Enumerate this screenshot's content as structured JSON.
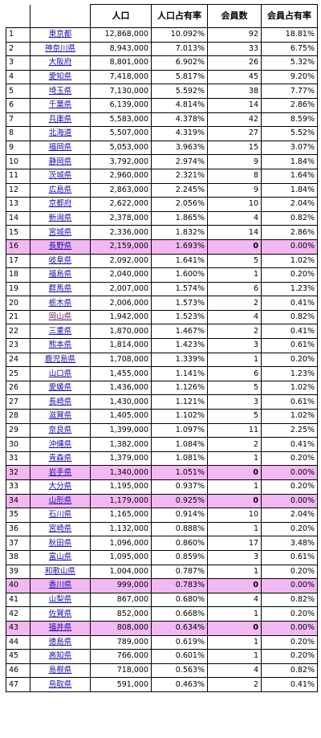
{
  "headers": [
    "",
    "",
    "人口",
    "人口占有率",
    "会員数",
    "会員占有率"
  ],
  "rows": [
    {
      "n": "1",
      "name": "東京都",
      "pop": "12,868,000",
      "pop_share": "10.092%",
      "members": "92",
      "mem_share": "18.81%",
      "highlight": false
    },
    {
      "n": "2",
      "name": "神奈川県",
      "pop": "8,943,000",
      "pop_share": "7.013%",
      "members": "33",
      "mem_share": "6.75%",
      "highlight": false
    },
    {
      "n": "3",
      "name": "大阪府",
      "pop": "8,801,000",
      "pop_share": "6.902%",
      "members": "26",
      "mem_share": "5.32%",
      "highlight": false
    },
    {
      "n": "4",
      "name": "愛知県",
      "pop": "7,418,000",
      "pop_share": "5.817%",
      "members": "45",
      "mem_share": "9.20%",
      "highlight": false
    },
    {
      "n": "5",
      "name": "埼玉県",
      "pop": "7,130,000",
      "pop_share": "5.592%",
      "members": "38",
      "mem_share": "7.77%",
      "highlight": false
    },
    {
      "n": "6",
      "name": "千葉県",
      "pop": "6,139,000",
      "pop_share": "4.814%",
      "members": "14",
      "mem_share": "2.86%",
      "highlight": false
    },
    {
      "n": "7",
      "name": "兵庫県",
      "pop": "5,583,000",
      "pop_share": "4.378%",
      "members": "42",
      "mem_share": "8.59%",
      "highlight": false
    },
    {
      "n": "8",
      "name": "北海道",
      "pop": "5,507,000",
      "pop_share": "4.319%",
      "members": "27",
      "mem_share": "5.52%",
      "highlight": false
    },
    {
      "n": "9",
      "name": "福岡県",
      "pop": "5,053,000",
      "pop_share": "3.963%",
      "members": "15",
      "mem_share": "3.07%",
      "highlight": false
    },
    {
      "n": "10",
      "name": "静岡県",
      "pop": "3,792,000",
      "pop_share": "2.974%",
      "members": "9",
      "mem_share": "1.84%",
      "highlight": false
    },
    {
      "n": "11",
      "name": "茨城県",
      "pop": "2,960,000",
      "pop_share": "2.321%",
      "members": "8",
      "mem_share": "1.64%",
      "highlight": false
    },
    {
      "n": "12",
      "name": "広島県",
      "pop": "2,863,000",
      "pop_share": "2.245%",
      "members": "9",
      "mem_share": "1.84%",
      "highlight": false
    },
    {
      "n": "13",
      "name": "京都府",
      "pop": "2,622,000",
      "pop_share": "2.056%",
      "members": "10",
      "mem_share": "2.04%",
      "highlight": false
    },
    {
      "n": "14",
      "name": "新潟県",
      "pop": "2,378,000",
      "pop_share": "1.865%",
      "members": "4",
      "mem_share": "0.82%",
      "highlight": false
    },
    {
      "n": "15",
      "name": "宮城県",
      "pop": "2,336,000",
      "pop_share": "1.832%",
      "members": "14",
      "mem_share": "2.86%",
      "highlight": false
    },
    {
      "n": "16",
      "name": "長野県",
      "pop": "2,159,000",
      "pop_share": "1.693%",
      "members": "0",
      "mem_share": "0.00%",
      "highlight": true
    },
    {
      "n": "17",
      "name": "岐阜県",
      "pop": "2,092,000",
      "pop_share": "1.641%",
      "members": "5",
      "mem_share": "1.02%",
      "highlight": false
    },
    {
      "n": "18",
      "name": "福島県",
      "pop": "2,040,000",
      "pop_share": "1.600%",
      "members": "1",
      "mem_share": "0.20%",
      "highlight": false
    },
    {
      "n": "19",
      "name": "群馬県",
      "pop": "2,007,000",
      "pop_share": "1.574%",
      "members": "6",
      "mem_share": "1.23%",
      "highlight": false
    },
    {
      "n": "20",
      "name": "栃木県",
      "pop": "2,006,000",
      "pop_share": "1.573%",
      "members": "2",
      "mem_share": "0.41%",
      "highlight": false
    },
    {
      "n": "21",
      "name": "岡山県",
      "pop": "1,942,000",
      "pop_share": "1.523%",
      "members": "4",
      "mem_share": "0.82%",
      "highlight": false
    },
    {
      "n": "22",
      "name": "三重県",
      "pop": "1,870,000",
      "pop_share": "1.467%",
      "members": "2",
      "mem_share": "0.41%",
      "highlight": false
    },
    {
      "n": "23",
      "name": "熊本県",
      "pop": "1,814,000",
      "pop_share": "1.423%",
      "members": "3",
      "mem_share": "0.61%",
      "highlight": false
    },
    {
      "n": "24",
      "name": "鹿児島県",
      "pop": "1,708,000",
      "pop_share": "1.339%",
      "members": "1",
      "mem_share": "0.20%",
      "highlight": false
    },
    {
      "n": "25",
      "name": "山口県",
      "pop": "1,455,000",
      "pop_share": "1.141%",
      "members": "6",
      "mem_share": "1.23%",
      "highlight": false
    },
    {
      "n": "26",
      "name": "愛媛県",
      "pop": "1,436,000",
      "pop_share": "1.126%",
      "members": "5",
      "mem_share": "1.02%",
      "highlight": false
    },
    {
      "n": "27",
      "name": "長崎県",
      "pop": "1,430,000",
      "pop_share": "1.121%",
      "members": "3",
      "mem_share": "0.61%",
      "highlight": false
    },
    {
      "n": "28",
      "name": "滋賀県",
      "pop": "1,405,000",
      "pop_share": "1.102%",
      "members": "5",
      "mem_share": "1.02%",
      "highlight": false
    },
    {
      "n": "29",
      "name": "奈良県",
      "pop": "1,399,000",
      "pop_share": "1.097%",
      "members": "11",
      "mem_share": "2.25%",
      "highlight": false
    },
    {
      "n": "30",
      "name": "沖縄県",
      "pop": "1,382,000",
      "pop_share": "1.084%",
      "members": "2",
      "mem_share": "0.41%",
      "highlight": false
    },
    {
      "n": "31",
      "name": "青森県",
      "pop": "1,379,000",
      "pop_share": "1.081%",
      "members": "1",
      "mem_share": "0.20%",
      "highlight": false
    },
    {
      "n": "32",
      "name": "岩手県",
      "pop": "1,340,000",
      "pop_share": "1.051%",
      "members": "0",
      "mem_share": "0.00%",
      "highlight": true
    },
    {
      "n": "33",
      "name": "大分県",
      "pop": "1,195,000",
      "pop_share": "0.937%",
      "members": "1",
      "mem_share": "0.20%",
      "highlight": false
    },
    {
      "n": "34",
      "name": "山形県",
      "pop": "1,179,000",
      "pop_share": "0.925%",
      "members": "0",
      "mem_share": "0.00%",
      "highlight": true
    },
    {
      "n": "35",
      "name": "石川県",
      "pop": "1,165,000",
      "pop_share": "0.914%",
      "members": "10",
      "mem_share": "2.04%",
      "highlight": false
    },
    {
      "n": "36",
      "name": "宮崎県",
      "pop": "1,132,000",
      "pop_share": "0.888%",
      "members": "1",
      "mem_share": "0.20%",
      "highlight": false
    },
    {
      "n": "37",
      "name": "秋田県",
      "pop": "1,096,000",
      "pop_share": "0.860%",
      "members": "17",
      "mem_share": "3.48%",
      "highlight": false
    },
    {
      "n": "38",
      "name": "富山県",
      "pop": "1,095,000",
      "pop_share": "0.859%",
      "members": "3",
      "mem_share": "0.61%",
      "highlight": false
    },
    {
      "n": "39",
      "name": "和歌山県",
      "pop": "1,004,000",
      "pop_share": "0.787%",
      "members": "1",
      "mem_share": "0.20%",
      "highlight": false
    },
    {
      "n": "40",
      "name": "香川県",
      "pop": "999,000",
      "pop_share": "0.783%",
      "members": "0",
      "mem_share": "0.00%",
      "highlight": true
    },
    {
      "n": "41",
      "name": "山梨県",
      "pop": "867,000",
      "pop_share": "0.680%",
      "members": "4",
      "mem_share": "0.82%",
      "highlight": false
    },
    {
      "n": "42",
      "name": "佐賀県",
      "pop": "852,000",
      "pop_share": "0.668%",
      "members": "1",
      "mem_share": "0.20%",
      "highlight": false
    },
    {
      "n": "43",
      "name": "福井県",
      "pop": "808,000",
      "pop_share": "0.634%",
      "members": "0",
      "mem_share": "0.00%",
      "highlight": true
    },
    {
      "n": "44",
      "name": "徳島県",
      "pop": "789,000",
      "pop_share": "0.619%",
      "members": "1",
      "mem_share": "0.20%",
      "highlight": false
    },
    {
      "n": "45",
      "name": "高知県",
      "pop": "766,000",
      "pop_share": "0.601%",
      "members": "1",
      "mem_share": "0.20%",
      "highlight": false
    },
    {
      "n": "46",
      "name": "島根県",
      "pop": "718,000",
      "pop_share": "0.563%",
      "members": "4",
      "mem_share": "0.82%",
      "highlight": false
    },
    {
      "n": "47",
      "name": "鳥取県",
      "pop": "591,000",
      "pop_share": "0.463%",
      "members": "2",
      "mem_share": "0.41%",
      "highlight": false
    }
  ],
  "colors": {
    "highlight": "#f2b8f2",
    "link": "#1a0dab",
    "visited": "#7a1e7a"
  }
}
